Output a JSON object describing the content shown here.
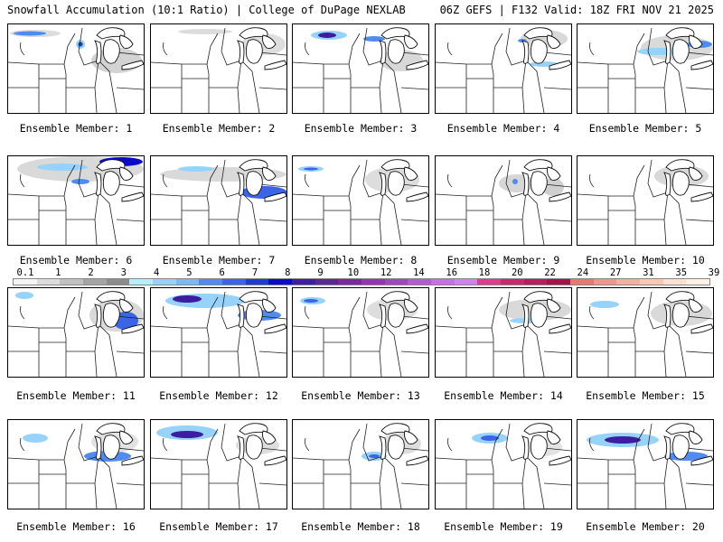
{
  "header": {
    "title": "Snowfall Accumulation (10:1 Ratio) | College of DuPage NEXLAB",
    "valid": "06Z GEFS | F132 Valid: 18Z FRI NOV 21 2025"
  },
  "legend": {
    "labels": [
      "0.1",
      "1",
      "2",
      "3",
      "4",
      "5",
      "6",
      "7",
      "8",
      "9",
      "10",
      "12",
      "14",
      "16",
      "18",
      "20",
      "22",
      "24",
      "27",
      "31",
      "35",
      "39"
    ],
    "colors": [
      "#f4f4f4",
      "#dcdcdc",
      "#c0c0c0",
      "#a4a4a4",
      "#8c8c8c",
      "#b4f0fa",
      "#96d2fa",
      "#78b9fa",
      "#508cf0",
      "#3c64e6",
      "#1e3cd2",
      "#0a0ac8",
      "#3c1ea0",
      "#5a2896",
      "#7828a0",
      "#9632b4",
      "#a046be",
      "#b45ad2",
      "#c86ee6",
      "#d282f0",
      "#dc3c8c",
      "#c8286e",
      "#b41e5a",
      "#a01446",
      "#e67873",
      "#f0968c",
      "#f5afa0",
      "#fac8b4",
      "#fce1d2",
      "#fff0e6"
    ]
  },
  "members": [
    {
      "label": "Ensemble Member: 1"
    },
    {
      "label": "Ensemble Member: 2"
    },
    {
      "label": "Ensemble Member: 3"
    },
    {
      "label": "Ensemble Member: 4"
    },
    {
      "label": "Ensemble Member: 5"
    },
    {
      "label": "Ensemble Member: 6"
    },
    {
      "label": "Ensemble Member: 7"
    },
    {
      "label": "Ensemble Member: 8"
    },
    {
      "label": "Ensemble Member: 9"
    },
    {
      "label": "Ensemble Member: 10"
    },
    {
      "label": "Ensemble Member: 11"
    },
    {
      "label": "Ensemble Member: 12"
    },
    {
      "label": "Ensemble Member: 13"
    },
    {
      "label": "Ensemble Member: 14"
    },
    {
      "label": "Ensemble Member: 15"
    },
    {
      "label": "Ensemble Member: 16"
    },
    {
      "label": "Ensemble Member: 17"
    },
    {
      "label": "Ensemble Member: 18"
    },
    {
      "label": "Ensemble Member: 19"
    },
    {
      "label": "Ensemble Member: 20"
    }
  ]
}
